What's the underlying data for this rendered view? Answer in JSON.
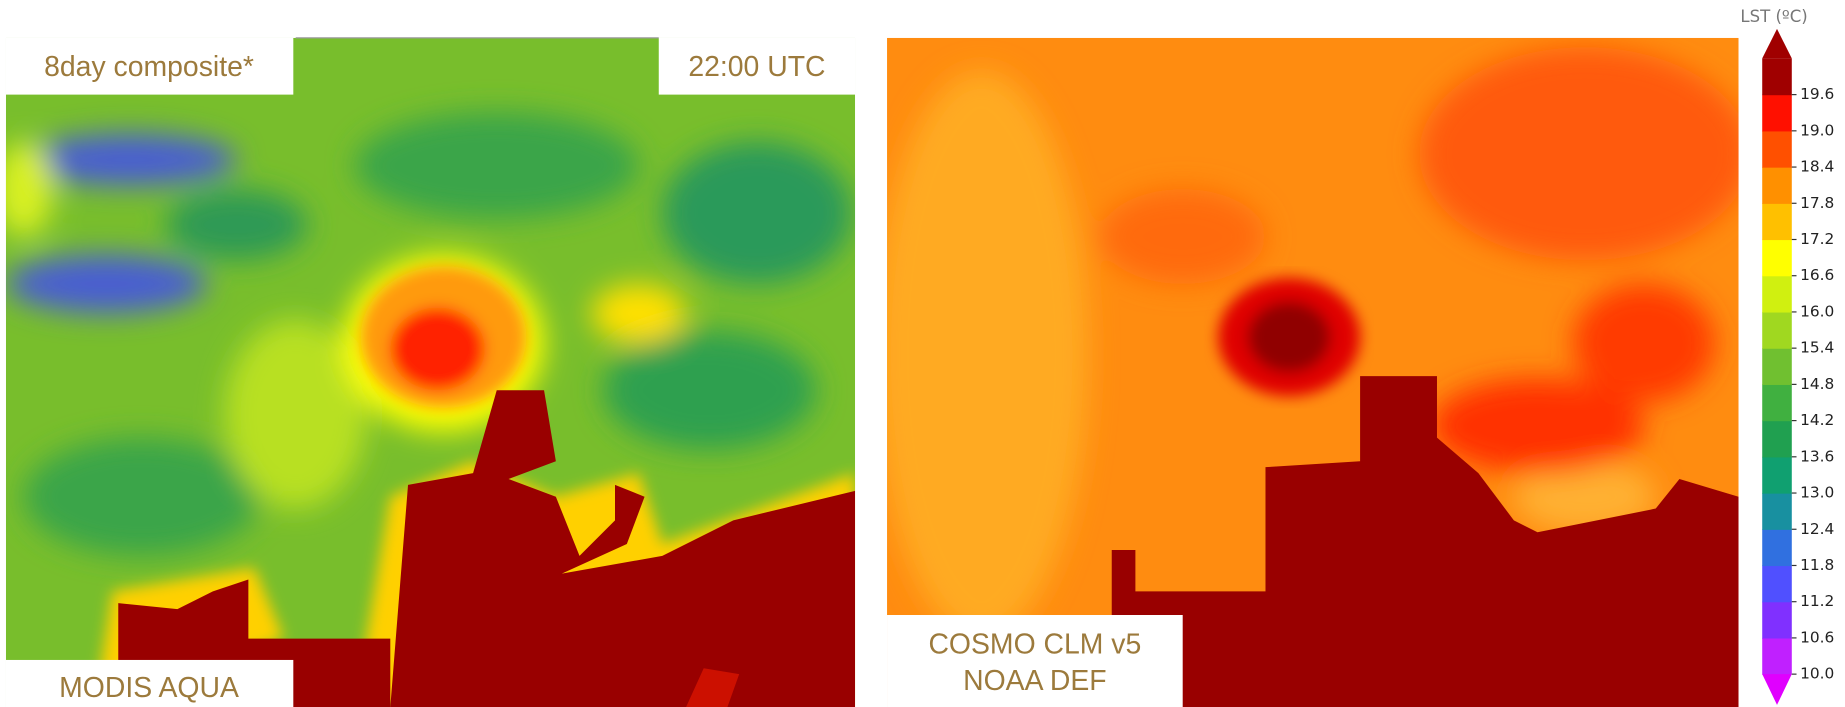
{
  "panels": [
    {
      "labels": [
        "8day composite*",
        "22:00 UTC",
        "MODIS AQUA"
      ]
    },
    {
      "labels": [
        "COSMO CLM v5",
        "NOAA DEF"
      ]
    }
  ],
  "colorbar": {
    "title": "LST (ºC)",
    "ticks": [
      19.6,
      {
        "value": 19,
        "label": "19.0"
      },
      18.4,
      17.8,
      17.2,
      16.6,
      {
        "value": 16,
        "label": "16.0"
      },
      15.4,
      14.8,
      14.2,
      13.6,
      {
        "value": 13,
        "label": "13.0"
      },
      12.4,
      11.8,
      11.2,
      10.6,
      {
        "value": 10,
        "label": "10.0"
      }
    ],
    "under_color": "#e000ff",
    "over_color": "#a00000",
    "colors": [
      "#c020ff",
      "#8030ff",
      "#5050ff",
      "#3070e0",
      "#1890a0",
      "#10a070",
      "#20a050",
      "#40b040",
      "#70c030",
      "#a0d820",
      "#d0f010",
      "#ffff00",
      "#ffc000",
      "#ff9000",
      "#ff5000",
      "#ff1000"
    ]
  }
}
